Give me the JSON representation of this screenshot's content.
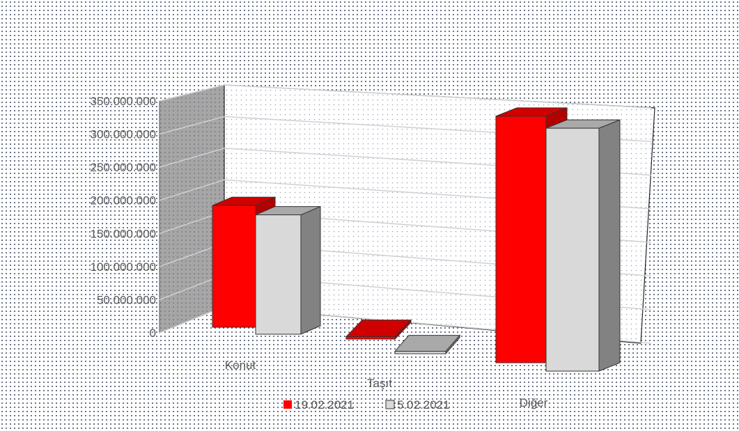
{
  "chart_data": {
    "type": "bar",
    "style": "3d-clustered-column",
    "categories": [
      "Konut",
      "Taşıt",
      "Diğer"
    ],
    "series": [
      {
        "name": "19.02.2021",
        "values": [
          255000000,
          5000000,
          335000000
        ],
        "color": "#ff0000"
      },
      {
        "name": "5.02.2021",
        "values": [
          250000000,
          5000000,
          330000000
        ],
        "color": "#d9d9d9"
      }
    ],
    "y_ticks": [
      "0",
      "50.000.000",
      "100.000.000",
      "150.000.000",
      "200.000.000",
      "250.000.000",
      "300.000.000",
      "350.000.000"
    ],
    "ylim": [
      0,
      350000000
    ],
    "grid": true,
    "legend": "bottom"
  }
}
